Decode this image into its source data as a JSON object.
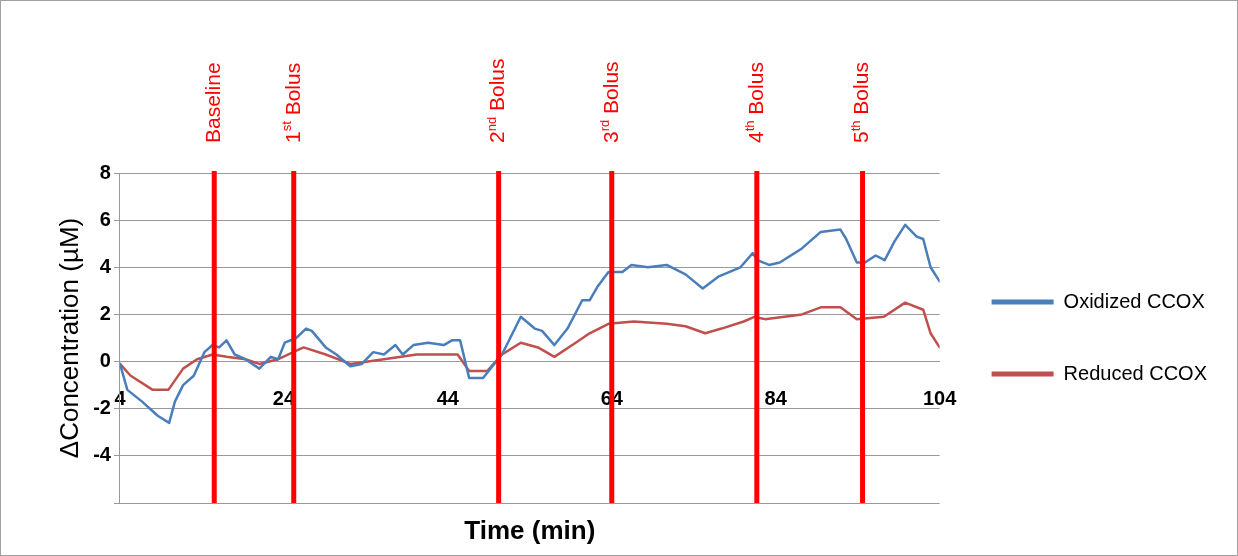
{
  "chart_data": {
    "type": "line",
    "xlabel": "Time (min)",
    "ylabel": "ΔConcentration (µM)",
    "xlim": [
      4,
      104
    ],
    "xticks": [
      4,
      24,
      44,
      64,
      84,
      104
    ],
    "ylim": [
      -6,
      8
    ],
    "yticks": [
      8,
      6,
      4,
      2,
      0,
      -2,
      -4,
      {
        "value": -6,
        "label": null
      }
    ],
    "grid": "y",
    "legend": "right",
    "marker": "none",
    "line_style": "solid",
    "series": [
      {
        "name": "Oxidized CCOX",
        "color": "#4a7ebb",
        "x": [
          4.0,
          4.9,
          6.7,
          8.6,
          10.0,
          10.7,
          11.7,
          13.0,
          14.3,
          15.3,
          16.1,
          17.0,
          18.0,
          19.3,
          21.0,
          22.4,
          23.3,
          24.1,
          25.5,
          26.7,
          27.4,
          29.1,
          30.4,
          32.1,
          33.5,
          34.9,
          36.2,
          37.6,
          38.5,
          39.8,
          41.6,
          43.5,
          44.5,
          45.5,
          46.6,
          48.3,
          49.2,
          50.6,
          51.9,
          52.9,
          54.6,
          55.5,
          57.0,
          58.6,
          60.4,
          61.3,
          62.3,
          63.6,
          65.3,
          66.4,
          68.4,
          70.7,
          73.0,
          75.1,
          77.0,
          79.7,
          81.2,
          81.8,
          83.2,
          84.5,
          87.2,
          89.5,
          91.9,
          92.6,
          93.9,
          94.9,
          96.2,
          97.3,
          98.5,
          99.8,
          101.2,
          102.0,
          102.9,
          104.0
        ],
        "values": [
          -0.1,
          -1.2,
          -1.7,
          -2.3,
          -2.6,
          -1.7,
          -1.0,
          -0.6,
          0.4,
          0.7,
          0.6,
          0.9,
          0.3,
          0.1,
          -0.3,
          0.2,
          0.1,
          0.8,
          1.0,
          1.4,
          1.3,
          0.6,
          0.3,
          -0.2,
          -0.1,
          0.4,
          0.3,
          0.7,
          0.3,
          0.7,
          0.8,
          0.7,
          0.9,
          0.9,
          -0.7,
          -0.7,
          -0.3,
          0.3,
          1.2,
          1.9,
          1.4,
          1.3,
          0.7,
          1.4,
          2.6,
          2.6,
          3.2,
          3.8,
          3.8,
          4.1,
          4.0,
          4.1,
          3.7,
          3.1,
          3.6,
          4.0,
          4.6,
          4.3,
          4.1,
          4.2,
          4.8,
          5.5,
          5.6,
          5.2,
          4.2,
          4.2,
          4.5,
          4.3,
          5.1,
          5.8,
          5.3,
          5.2,
          4.0,
          3.4
        ]
      },
      {
        "name": "Reduced CCOX",
        "color": "#c0504d",
        "x": [
          4.0,
          5.3,
          8.0,
          9.9,
          11.7,
          13.4,
          15.3,
          17.0,
          19.3,
          21.0,
          23.3,
          26.4,
          29.1,
          32.1,
          36.2,
          40.2,
          45.2,
          46.6,
          48.8,
          50.6,
          52.9,
          55.0,
          57.0,
          59.6,
          61.3,
          63.6,
          66.7,
          70.7,
          73.0,
          75.4,
          77.4,
          80.1,
          81.4,
          82.7,
          87.2,
          89.5,
          91.9,
          93.9,
          97.2,
          99.8,
          102.0,
          102.9,
          104.0
        ],
        "values": [
          -0.1,
          -0.6,
          -1.2,
          -1.2,
          -0.3,
          0.1,
          0.3,
          0.2,
          0.1,
          -0.1,
          0.1,
          0.6,
          0.3,
          -0.1,
          0.1,
          0.3,
          0.3,
          -0.4,
          -0.4,
          0.3,
          0.8,
          0.6,
          0.2,
          0.8,
          1.2,
          1.6,
          1.7,
          1.6,
          1.5,
          1.2,
          1.4,
          1.7,
          1.9,
          1.8,
          2.0,
          2.3,
          2.3,
          1.8,
          1.9,
          2.5,
          2.2,
          1.2,
          0.6
        ]
      }
    ],
    "ref_lines": [
      {
        "axis": "x",
        "value": 15.5,
        "label": "Baseline",
        "color": "#ff0000"
      },
      {
        "axis": "x",
        "value": 25.2,
        "label": "1$^{st}$ Bolus",
        "color": "#ff0000"
      },
      {
        "axis": "x",
        "value": 50.2,
        "label": "2$^{nd}$ Bolus",
        "color": "#ff0000"
      },
      {
        "axis": "x",
        "value": 64.0,
        "label": "3$^{rd}$ Bolus",
        "color": "#ff0000"
      },
      {
        "axis": "x",
        "value": 81.7,
        "label": "4$^{th}$ Bolus",
        "color": "#ff0000"
      },
      {
        "axis": "x",
        "value": 94.6,
        "label": "5$^{th}$ Bolus",
        "color": "#ff0000"
      }
    ]
  }
}
